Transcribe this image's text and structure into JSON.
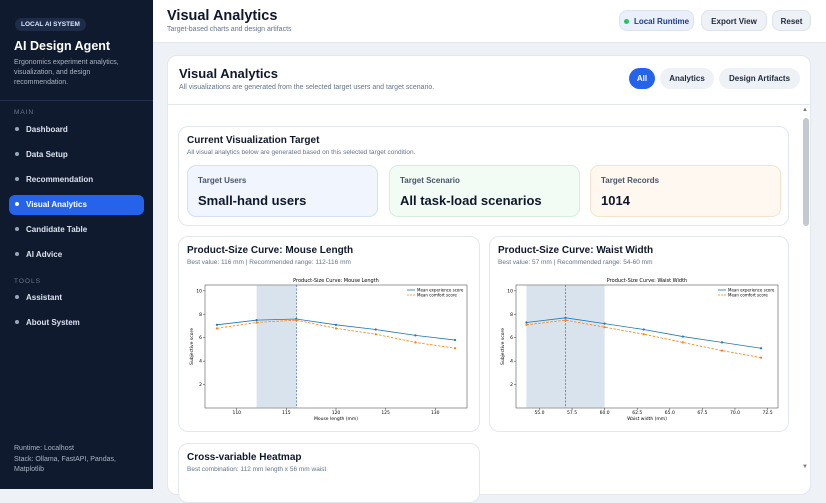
{
  "sidebar": {
    "badge": "LOCAL AI SYSTEM",
    "title": "AI Design Agent",
    "description": "Ergonomics experiment analytics, visualization, and design recommendation.",
    "sections": [
      {
        "label": "MAIN",
        "items": [
          "Dashboard",
          "Data Setup",
          "Recommendation",
          "Visual Analytics",
          "Candidate Table",
          "AI Advice"
        ]
      },
      {
        "label": "TOOLS",
        "items": [
          "Assistant",
          "About System"
        ]
      }
    ],
    "footer": {
      "runtime": "Runtime: Localhost",
      "stack": "Stack: Ollama, FastAPI, Pandas, Matplotlib"
    }
  },
  "header": {
    "title": "Visual Analytics",
    "subtitle": "Target-based charts and design artifacts",
    "buttons": [
      "Local Runtime",
      "Export View",
      "Reset"
    ]
  },
  "panel": {
    "title": "Visual Analytics",
    "subtitle": "All visualizations are generated from the selected target users and target scenario.",
    "tabs": [
      "All",
      "Analytics",
      "Design Artifacts"
    ]
  },
  "target": {
    "title": "Current Visualization Target",
    "subtitle": "All visual analytics below are generated based on this selected target condition.",
    "cards": [
      {
        "label": "Target Users",
        "value": "Small-hand users"
      },
      {
        "label": "Target Scenario",
        "value": "All task-load scenarios"
      },
      {
        "label": "Target Records",
        "value": 1014
      }
    ]
  },
  "curves": [
    {
      "title": "Product-Size Curve: Mouse Length",
      "subtitle": "Best value: 116 mm | Recommended range: 112-116 mm"
    },
    {
      "title": "Product-Size Curve: Waist Width",
      "subtitle": "Best value: 57 mm | Recommended range: 54-60 mm"
    }
  ],
  "heatmap": {
    "title": "Cross-variable Heatmap",
    "subtitle": "Best combination: 112 mm length x 56 mm waist"
  },
  "chart_data": [
    {
      "type": "line",
      "title": "Product-Size Curve: Mouse Length",
      "xlabel": "Mouse length (mm)",
      "ylabel": "Subjective score",
      "x": [
        108,
        112,
        116,
        120,
        124,
        128,
        132
      ],
      "series": [
        {
          "name": "Mean experience score",
          "color": "#1f77b4",
          "linestyle": "solid",
          "values": [
            7.1,
            7.5,
            7.6,
            7.1,
            6.7,
            6.2,
            5.8
          ]
        },
        {
          "name": "Mean comfort score",
          "color": "#ff7f0e",
          "linestyle": "dashed",
          "values": [
            6.8,
            7.3,
            7.5,
            6.8,
            6.3,
            5.6,
            5.1
          ]
        }
      ],
      "xlim": [
        106.8,
        133.2
      ],
      "ylim": [
        0,
        10.5
      ],
      "xticks": [
        110,
        115,
        120,
        125,
        130
      ],
      "yticks": [
        2,
        4,
        6,
        8,
        10
      ],
      "highlight_range": [
        112,
        116
      ],
      "best_x": 116,
      "legend": "upper right"
    },
    {
      "type": "line",
      "title": "Product-Size Curve: Waist Width",
      "xlabel": "Waist width (mm)",
      "ylabel": "Subjective score",
      "x": [
        54,
        57,
        60,
        63,
        66,
        69,
        72
      ],
      "series": [
        {
          "name": "Mean experience score",
          "color": "#1f77b4",
          "linestyle": "solid",
          "values": [
            7.3,
            7.7,
            7.2,
            6.7,
            6.1,
            5.6,
            5.1
          ]
        },
        {
          "name": "Mean comfort score",
          "color": "#ff7f0e",
          "linestyle": "dashed",
          "values": [
            7.1,
            7.5,
            6.9,
            6.3,
            5.6,
            4.9,
            4.3
          ]
        }
      ],
      "xlim": [
        53.2,
        73.3
      ],
      "ylim": [
        0,
        10.5
      ],
      "xticks": [
        {
          "value": 55,
          "label": "55.0"
        },
        {
          "value": 57.5,
          "label": "57.5"
        },
        {
          "value": 60,
          "label": "60.0"
        },
        {
          "value": 62.5,
          "label": "62.5"
        },
        {
          "value": 65,
          "label": "65.0"
        },
        {
          "value": 67.5,
          "label": "67.5"
        },
        {
          "value": 70,
          "label": "70.0"
        },
        {
          "value": 72.5,
          "label": "72.5"
        }
      ],
      "yticks": [
        2,
        4,
        6,
        8,
        10
      ],
      "highlight_range": [
        54,
        60
      ],
      "best_x": 57,
      "legend": "upper right"
    }
  ]
}
